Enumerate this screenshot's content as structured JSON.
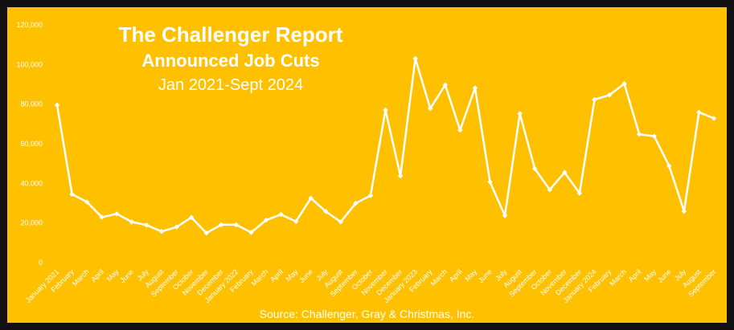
{
  "chart_data": {
    "type": "line",
    "title": "The Challenger Report",
    "subtitle": "Announced Job Cuts",
    "date_range": "Jan 2021-Sept 2024",
    "source": "Source: Challenger, Gray & Christmas, Inc.",
    "ylim": [
      0,
      120000
    ],
    "y_ticks": [
      "0",
      "20,000",
      "40,000",
      "60,000",
      "80,000",
      "100,000",
      "120,000"
    ],
    "grid": false,
    "legend": "none",
    "colors": {
      "background": "#FFC000",
      "line": "#FFFFFF",
      "text": "#FFFFFF"
    },
    "categories": [
      "January 2021",
      "February",
      "March",
      "April",
      "May",
      "June",
      "July",
      "August",
      "September",
      "October",
      "November",
      "December",
      "January 2022",
      "February",
      "March",
      "April",
      "May",
      "June",
      "July",
      "August",
      "September",
      "October",
      "November",
      "December",
      "January 2023",
      "February",
      "March",
      "April",
      "May",
      "June",
      "July",
      "August",
      "September",
      "October",
      "November",
      "December",
      "January 2024",
      "February",
      "March",
      "April",
      "May",
      "June",
      "July",
      "August",
      "September"
    ],
    "series": [
      {
        "name": "Announced Job Cuts",
        "values": [
          79500,
          34500,
          30600,
          22900,
          24600,
          20500,
          18900,
          15700,
          17900,
          22800,
          14900,
          19100,
          19100,
          15200,
          21400,
          24300,
          20700,
          32500,
          25800,
          20500,
          29900,
          33800,
          77000,
          43700,
          103000,
          77800,
          89700,
          66900,
          88200,
          40700,
          23700,
          75200,
          47400,
          36800,
          45500,
          35000,
          82300,
          84600,
          90300,
          64800,
          63800,
          48800,
          25900,
          75900,
          72800
        ]
      }
    ]
  }
}
